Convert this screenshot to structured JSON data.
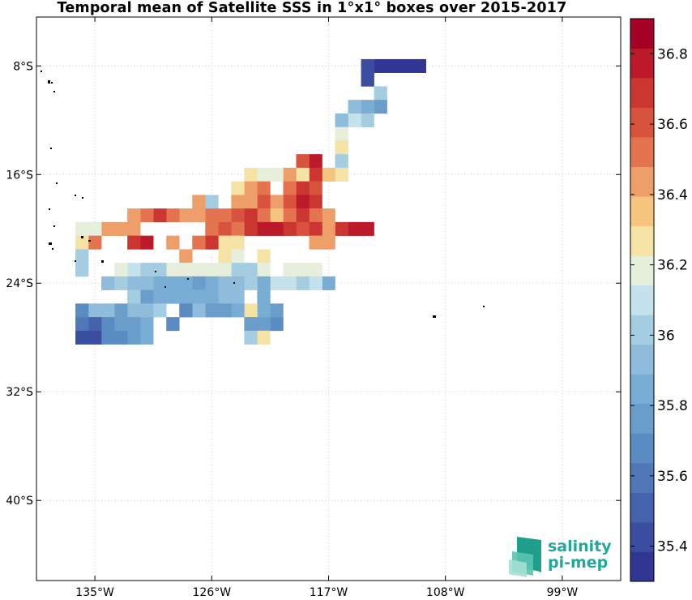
{
  "title": "Temporal mean of Satellite SSS in 1°x1° boxes over 2015-2017",
  "logo": {
    "line1": "salinity",
    "line2": "pi-mep"
  },
  "map": {
    "lon_min": -139.5,
    "lon_max": -94.5,
    "lat_min": -45.9,
    "lat_max": -4.4,
    "x_ticks": [
      {
        "lon": -135,
        "label": "135°W"
      },
      {
        "lon": -126,
        "label": "126°W"
      },
      {
        "lon": -117,
        "label": "117°W"
      },
      {
        "lon": -108,
        "label": "108°W"
      },
      {
        "lon": -99,
        "label": "99°W"
      }
    ],
    "y_ticks": [
      {
        "lat": -8,
        "label": "8°S"
      },
      {
        "lat": -16,
        "label": "16°S"
      },
      {
        "lat": -24,
        "label": "24°S"
      },
      {
        "lat": -32,
        "label": "32°S"
      },
      {
        "lat": -40,
        "label": "40°S"
      }
    ],
    "grid": true
  },
  "colorbar": {
    "vmin": 35.3,
    "vmax": 36.9,
    "step": 0.1,
    "ticks": [
      {
        "value": 35.4,
        "label": "35.4"
      },
      {
        "value": 35.6,
        "label": "35.6"
      },
      {
        "value": 35.8,
        "label": "35.8"
      },
      {
        "value": 36.0,
        "label": "36"
      },
      {
        "value": 36.2,
        "label": "36.2"
      },
      {
        "value": 36.4,
        "label": "36.4"
      },
      {
        "value": 36.6,
        "label": "36.6"
      },
      {
        "value": 36.8,
        "label": "36.8"
      }
    ],
    "colors": [
      "#313695",
      "#3a4da1",
      "#4562ad",
      "#5078b9",
      "#5b8bc3",
      "#6b9dcb",
      "#7aadd3",
      "#8ebcda",
      "#a5cde2",
      "#c5e2ec",
      "#e6efdc",
      "#f5e3a5",
      "#f5c57e",
      "#ee9e68",
      "#e4744f",
      "#d8533e",
      "#cb3631",
      "#bc1a2a",
      "#a50026"
    ]
  },
  "chart_data": {
    "type": "heatmap",
    "title": "Temporal mean of Satellite SSS in 1°x1° boxes over 2015-2017",
    "x_axis": "longitude (°W)",
    "y_axis": "latitude (°S)",
    "cell_size_deg": 1,
    "colorbar_range": [
      35.3,
      36.9
    ],
    "cells_lat_south_lon_west_sss": [
      [
        8,
        110,
        35.35
      ],
      [
        8,
        111,
        35.35
      ],
      [
        8,
        112,
        35.35
      ],
      [
        8,
        113,
        35.35
      ],
      [
        8,
        114,
        35.45
      ],
      [
        9,
        114,
        35.4
      ],
      [
        10,
        113,
        36.0
      ],
      [
        11,
        113,
        35.75
      ],
      [
        11,
        114,
        35.85
      ],
      [
        11,
        115,
        35.95
      ],
      [
        12,
        114,
        36.05
      ],
      [
        12,
        115,
        36.1
      ],
      [
        12,
        116,
        35.95
      ],
      [
        13,
        116,
        36.2
      ],
      [
        14,
        116,
        36.25
      ],
      [
        15,
        116,
        36.05
      ],
      [
        15,
        118,
        36.8
      ],
      [
        15,
        119,
        36.6
      ],
      [
        16,
        116,
        36.25
      ],
      [
        16,
        117,
        36.35
      ],
      [
        16,
        118,
        36.65
      ],
      [
        16,
        119,
        36.25
      ],
      [
        16,
        120,
        36.4
      ],
      [
        16,
        121,
        36.15
      ],
      [
        16,
        122,
        36.2
      ],
      [
        16,
        123,
        36.3
      ],
      [
        17,
        118,
        36.6
      ],
      [
        17,
        119,
        36.7
      ],
      [
        17,
        120,
        36.5
      ],
      [
        17,
        122,
        36.5
      ],
      [
        17,
        123,
        36.45
      ],
      [
        17,
        124,
        36.3
      ],
      [
        18,
        118,
        36.65
      ],
      [
        18,
        119,
        36.75
      ],
      [
        18,
        120,
        36.6
      ],
      [
        18,
        121,
        36.45
      ],
      [
        18,
        122,
        36.6
      ],
      [
        18,
        123,
        36.4
      ],
      [
        18,
        124,
        36.45
      ],
      [
        18,
        126,
        36.05
      ],
      [
        18,
        127,
        36.4
      ],
      [
        19,
        117,
        36.45
      ],
      [
        19,
        118,
        36.55
      ],
      [
        19,
        119,
        36.65
      ],
      [
        19,
        120,
        36.5
      ],
      [
        19,
        121,
        36.35
      ],
      [
        19,
        122,
        36.55
      ],
      [
        19,
        123,
        36.65
      ],
      [
        19,
        124,
        36.6
      ],
      [
        19,
        125,
        36.5
      ],
      [
        19,
        126,
        36.5
      ],
      [
        19,
        127,
        36.45
      ],
      [
        19,
        128,
        36.45
      ],
      [
        19,
        129,
        36.55
      ],
      [
        19,
        130,
        36.65
      ],
      [
        19,
        131,
        36.55
      ],
      [
        19,
        132,
        36.45
      ],
      [
        20,
        114,
        36.75
      ],
      [
        20,
        115,
        36.75
      ],
      [
        20,
        116,
        36.65
      ],
      [
        20,
        117,
        36.45
      ],
      [
        20,
        118,
        36.65
      ],
      [
        20,
        119,
        36.6
      ],
      [
        20,
        120,
        36.7
      ],
      [
        20,
        121,
        36.75
      ],
      [
        20,
        122,
        36.75
      ],
      [
        20,
        123,
        36.65
      ],
      [
        20,
        124,
        36.55
      ],
      [
        20,
        125,
        36.6
      ],
      [
        20,
        126,
        36.55
      ],
      [
        20,
        132,
        36.45
      ],
      [
        20,
        133,
        36.45
      ],
      [
        20,
        134,
        36.45
      ],
      [
        20,
        135,
        36.2
      ],
      [
        20,
        136,
        36.2
      ],
      [
        21,
        117,
        36.45
      ],
      [
        21,
        118,
        36.45
      ],
      [
        21,
        124,
        36.25
      ],
      [
        21,
        125,
        36.25
      ],
      [
        21,
        126,
        36.65
      ],
      [
        21,
        127,
        36.55
      ],
      [
        21,
        129,
        36.45
      ],
      [
        21,
        131,
        36.75
      ],
      [
        21,
        132,
        36.65
      ],
      [
        21,
        135,
        36.55
      ],
      [
        21,
        136,
        36.25
      ],
      [
        22,
        122,
        36.25
      ],
      [
        22,
        124,
        36.15
      ],
      [
        22,
        125,
        36.3
      ],
      [
        22,
        128,
        36.45
      ],
      [
        22,
        136,
        36.05
      ],
      [
        23,
        118,
        36.2
      ],
      [
        23,
        119,
        36.2
      ],
      [
        23,
        120,
        36.2
      ],
      [
        23,
        122,
        36.15
      ],
      [
        23,
        123,
        36.05
      ],
      [
        23,
        124,
        36.05
      ],
      [
        23,
        125,
        36.2
      ],
      [
        23,
        126,
        36.2
      ],
      [
        23,
        127,
        36.15
      ],
      [
        23,
        128,
        36.15
      ],
      [
        23,
        129,
        36.15
      ],
      [
        23,
        130,
        36.05
      ],
      [
        23,
        131,
        36.05
      ],
      [
        23,
        132,
        36.1
      ],
      [
        23,
        133,
        36.2
      ],
      [
        23,
        136,
        36.0
      ],
      [
        24,
        117,
        35.85
      ],
      [
        24,
        118,
        36.1
      ],
      [
        24,
        119,
        36.05
      ],
      [
        24,
        120,
        36.1
      ],
      [
        24,
        121,
        36.1
      ],
      [
        24,
        122,
        35.85
      ],
      [
        24,
        123,
        36.05
      ],
      [
        24,
        124,
        35.95
      ],
      [
        24,
        125,
        35.95
      ],
      [
        24,
        126,
        35.85
      ],
      [
        24,
        127,
        35.75
      ],
      [
        24,
        128,
        35.85
      ],
      [
        24,
        129,
        35.85
      ],
      [
        24,
        130,
        35.85
      ],
      [
        24,
        131,
        35.95
      ],
      [
        24,
        132,
        35.95
      ],
      [
        24,
        133,
        36.05
      ],
      [
        24,
        134,
        35.95
      ],
      [
        25,
        122,
        35.85
      ],
      [
        25,
        124,
        35.95
      ],
      [
        25,
        125,
        35.95
      ],
      [
        25,
        126,
        35.85
      ],
      [
        25,
        127,
        35.85
      ],
      [
        25,
        128,
        35.85
      ],
      [
        25,
        129,
        35.85
      ],
      [
        25,
        130,
        35.85
      ],
      [
        25,
        131,
        35.75
      ],
      [
        25,
        132,
        36.0
      ],
      [
        26,
        121,
        35.8
      ],
      [
        26,
        122,
        35.85
      ],
      [
        26,
        123,
        36.3
      ],
      [
        26,
        124,
        35.85
      ],
      [
        26,
        125,
        35.8
      ],
      [
        26,
        126,
        35.75
      ],
      [
        26,
        127,
        35.9
      ],
      [
        26,
        128,
        35.65
      ],
      [
        26,
        130,
        36.0
      ],
      [
        26,
        131,
        35.95
      ],
      [
        26,
        132,
        35.9
      ],
      [
        26,
        133,
        35.75
      ],
      [
        26,
        134,
        35.9
      ],
      [
        26,
        135,
        35.9
      ],
      [
        26,
        136,
        35.65
      ],
      [
        27,
        121,
        35.7
      ],
      [
        27,
        122,
        35.75
      ],
      [
        27,
        123,
        35.8
      ],
      [
        27,
        129,
        35.7
      ],
      [
        27,
        131,
        35.85
      ],
      [
        27,
        132,
        35.8
      ],
      [
        27,
        133,
        35.75
      ],
      [
        27,
        134,
        35.7
      ],
      [
        27,
        135,
        35.55
      ],
      [
        27,
        136,
        35.6
      ],
      [
        28,
        122,
        36.25
      ],
      [
        28,
        123,
        36.05
      ],
      [
        28,
        131,
        35.85
      ],
      [
        28,
        132,
        35.8
      ],
      [
        28,
        133,
        35.7
      ],
      [
        28,
        134,
        35.65
      ],
      [
        28,
        135,
        35.45
      ],
      [
        28,
        136,
        35.45
      ]
    ]
  }
}
